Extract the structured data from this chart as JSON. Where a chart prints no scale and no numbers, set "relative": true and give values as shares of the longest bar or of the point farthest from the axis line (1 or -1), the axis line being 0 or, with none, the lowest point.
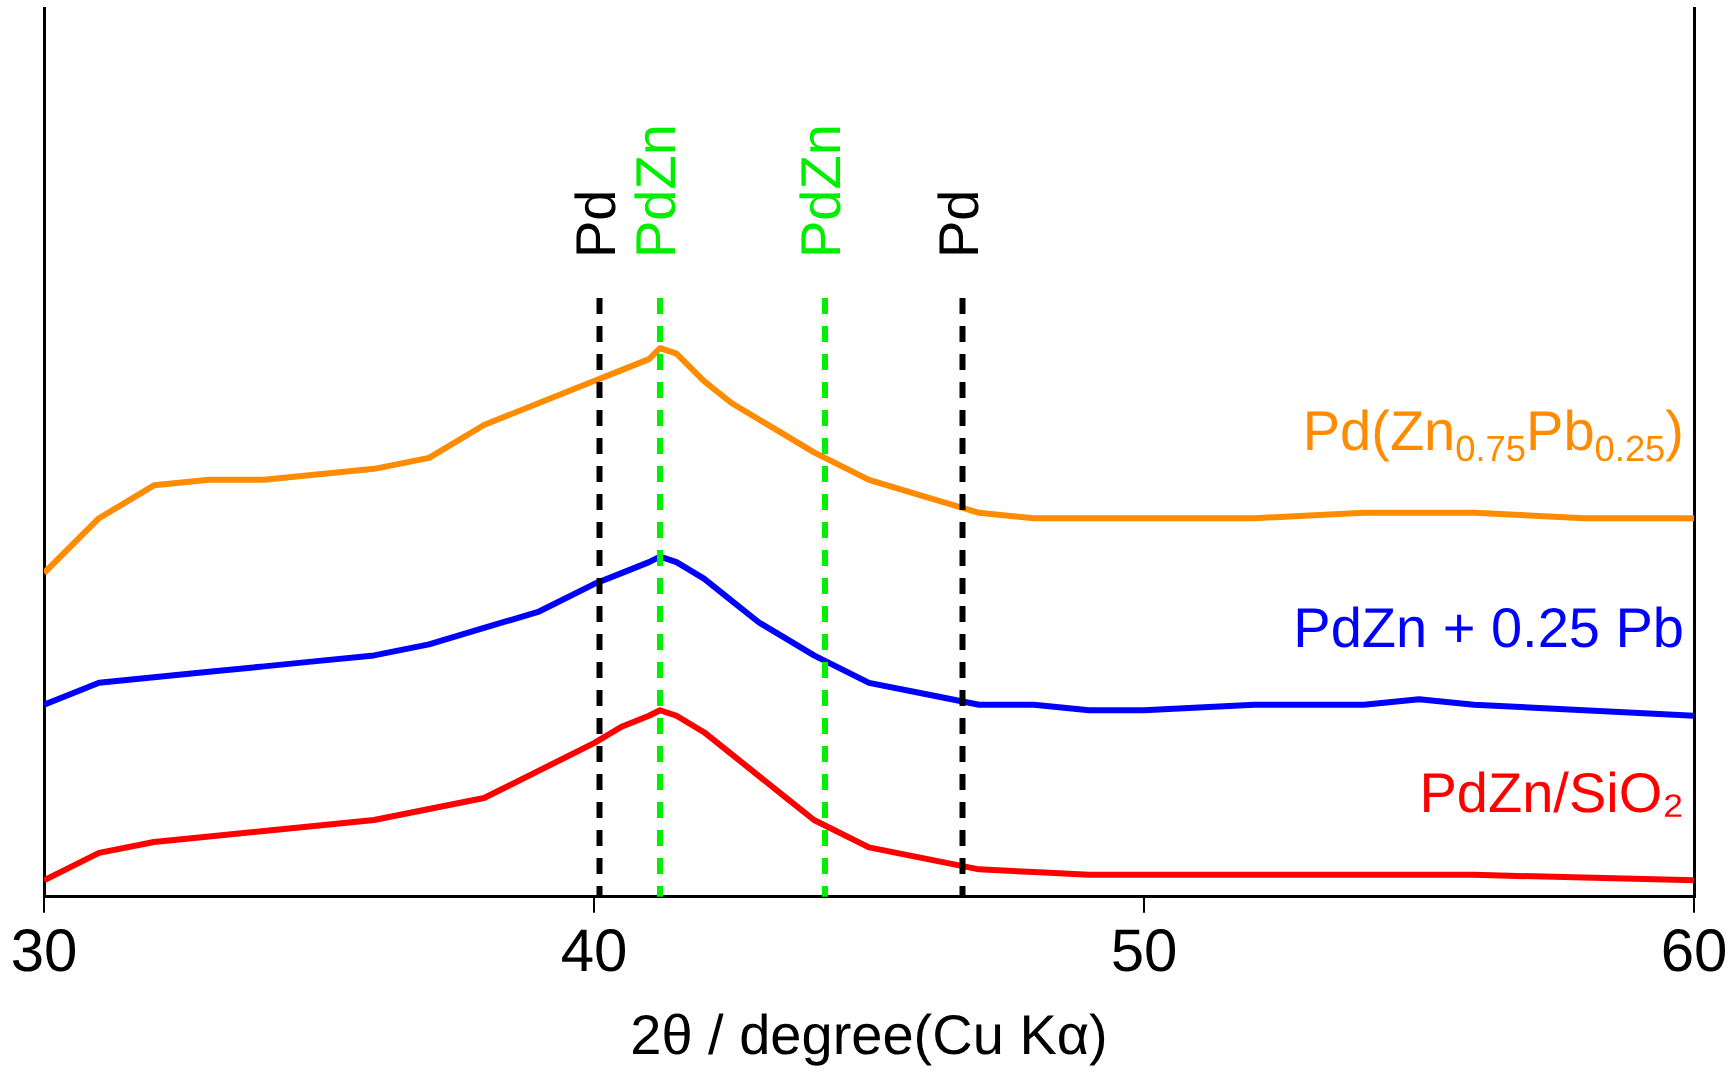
{
  "chart_data": {
    "type": "line",
    "relative": true,
    "xlabel": "2θ / degree(Cu Kα)",
    "xlim": [
      30,
      60
    ],
    "xticks": [
      {
        "value": 30,
        "label": "30"
      },
      {
        "value": 40,
        "label": "40"
      },
      {
        "value": 50,
        "label": "50"
      },
      {
        "value": 60,
        "label": "60"
      }
    ],
    "grid": false,
    "legend": false,
    "marker": "none",
    "line_style": "solid",
    "series": [
      {
        "name": "Pd(Zn$_{0.75}$Pb$_{0.25}$)",
        "color": "#ff8c00",
        "x": [
          30,
          31,
          32,
          33,
          34,
          35,
          36,
          37,
          38,
          39,
          40,
          40.5,
          41,
          41.2,
          41.5,
          42,
          42.5,
          43,
          43.5,
          44,
          45,
          46,
          47,
          48,
          49,
          50,
          52,
          54,
          55,
          56,
          58,
          60
        ],
        "values": [
          0.59,
          0.69,
          0.75,
          0.76,
          0.76,
          0.77,
          0.78,
          0.8,
          0.86,
          0.9,
          0.94,
          0.96,
          0.98,
          1,
          0.99,
          0.94,
          0.9,
          0.87,
          0.84,
          0.81,
          0.76,
          0.73,
          0.7,
          0.69,
          0.69,
          0.69,
          0.69,
          0.7,
          0.7,
          0.7,
          0.69,
          0.69
        ]
      },
      {
        "name": "PdZn + 0.25 Pb",
        "color": "#0000ff",
        "x": [
          30,
          31,
          32,
          33,
          34,
          35,
          36,
          37,
          38,
          39,
          40,
          40.5,
          41,
          41.2,
          41.5,
          42,
          42.5,
          43,
          43.5,
          44,
          45,
          46,
          47,
          48,
          49,
          50,
          52,
          54,
          55,
          56,
          58,
          60
        ],
        "values": [
          0.35,
          0.39,
          0.4,
          0.41,
          0.42,
          0.43,
          0.44,
          0.46,
          0.49,
          0.52,
          0.57,
          0.59,
          0.61,
          0.62,
          0.61,
          0.58,
          0.54,
          0.5,
          0.47,
          0.44,
          0.39,
          0.37,
          0.35,
          0.35,
          0.34,
          0.34,
          0.35,
          0.35,
          0.36,
          0.35,
          0.34,
          0.33
        ]
      },
      {
        "name": "PdZn/SiO₂",
        "color": "#ff0000",
        "x": [
          30,
          31,
          32,
          33,
          34,
          35,
          36,
          37,
          38,
          39,
          40,
          40.5,
          41,
          41.2,
          41.5,
          42,
          42.5,
          43,
          43.5,
          44,
          45,
          46,
          47,
          48,
          49,
          50,
          52,
          54,
          55,
          56,
          58,
          60
        ],
        "values": [
          0.03,
          0.08,
          0.1,
          0.11,
          0.12,
          0.13,
          0.14,
          0.16,
          0.18,
          0.23,
          0.28,
          0.31,
          0.33,
          0.34,
          0.33,
          0.3,
          0.26,
          0.22,
          0.18,
          0.14,
          0.09,
          0.07,
          0.05,
          0.045,
          0.04,
          0.04,
          0.04,
          0.04,
          0.04,
          0.04,
          0.035,
          0.03
        ]
      }
    ],
    "ref_lines": [
      {
        "axis": "x",
        "value": 40.1,
        "label": "Pd",
        "color": "#000000",
        "line_style": "dashed"
      },
      {
        "axis": "x",
        "value": 41.2,
        "label": "PdZn",
        "color": "#00ee00",
        "line_style": "dashed"
      },
      {
        "axis": "x",
        "value": 44.2,
        "label": "PdZn",
        "color": "#00ee00",
        "line_style": "dashed"
      },
      {
        "axis": "x",
        "value": 46.7,
        "label": "Pd",
        "color": "#000000",
        "line_style": "dashed"
      }
    ]
  }
}
